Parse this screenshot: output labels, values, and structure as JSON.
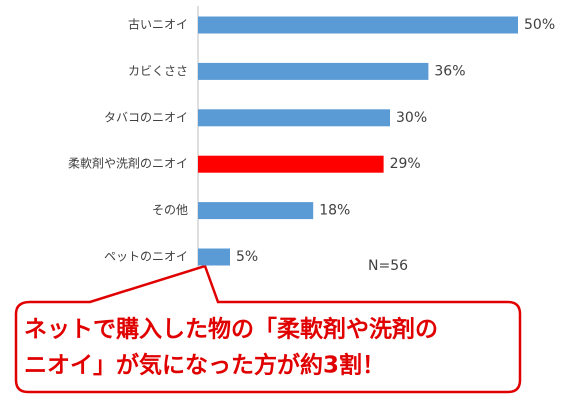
{
  "chart_data": {
    "type": "bar",
    "orientation": "horizontal",
    "categories": [
      "古いニオイ",
      "カビくささ",
      "タバコのニオイ",
      "柔軟剤や洗剤のニオイ",
      "その他",
      "ペットのニオイ"
    ],
    "values": [
      50,
      36,
      30,
      29,
      18,
      5
    ],
    "value_labels": [
      "50%",
      "36%",
      "30%",
      "29%",
      "18%",
      "5%"
    ],
    "colors": [
      "#5b9bd5",
      "#5b9bd5",
      "#5b9bd5",
      "#ff0000",
      "#5b9bd5",
      "#5b9bd5"
    ],
    "note": "N=56",
    "callout": [
      "ネットで購入した物の「柔軟剤や洗剤の",
      "ニオイ」が気になった方が約3割！"
    ]
  }
}
